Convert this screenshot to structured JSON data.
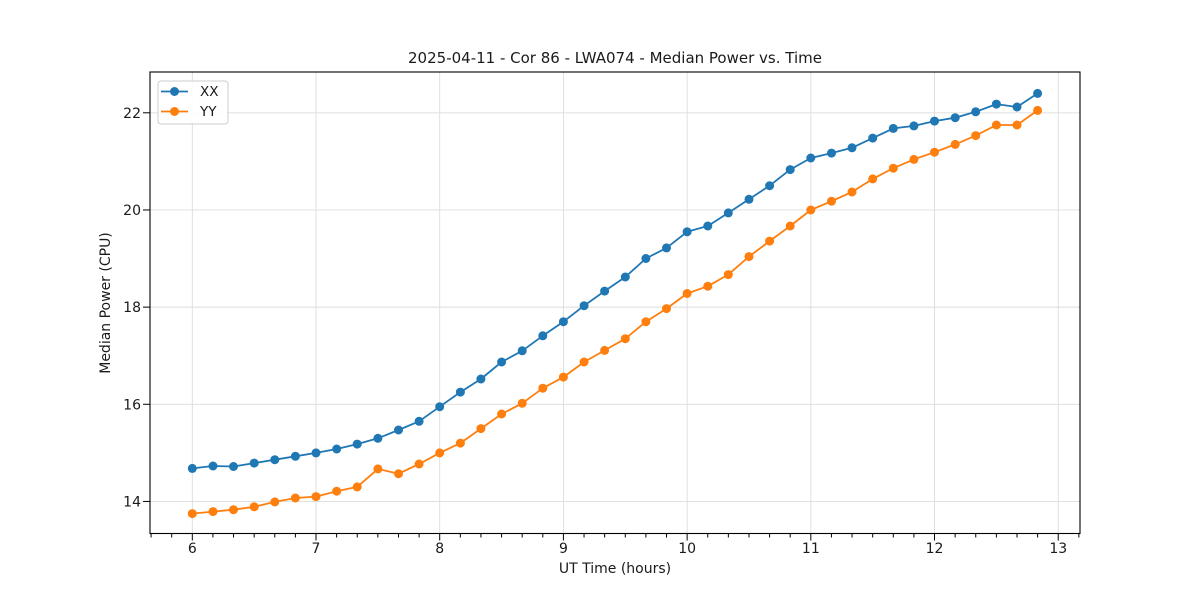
{
  "chart_data": {
    "type": "line",
    "title": "2025-04-11 - Cor 86 - LWA074 - Median Power vs. Time",
    "xlabel": "UT Time (hours)",
    "ylabel": "Median Power (CPU)",
    "xlim": [
      5.658,
      13.176
    ],
    "ylim": [
      13.34,
      22.84
    ],
    "xticks": [
      6,
      7,
      8,
      9,
      10,
      11,
      12,
      13
    ],
    "xtick_labels": [
      "6",
      "7",
      "8",
      "9",
      "10",
      "11",
      "12",
      "13"
    ],
    "yticks": [
      14,
      16,
      18,
      20,
      22
    ],
    "ytick_labels": [
      "14",
      "16",
      "18",
      "20",
      "22"
    ],
    "x_minor_per_major": 6,
    "grid": true,
    "legend_position": "upper left",
    "marker": "circle",
    "x": [
      6.0,
      6.167,
      6.333,
      6.5,
      6.667,
      6.833,
      7.0,
      7.167,
      7.333,
      7.5,
      7.667,
      7.833,
      8.0,
      8.167,
      8.333,
      8.5,
      8.667,
      8.833,
      9.0,
      9.167,
      9.333,
      9.5,
      9.667,
      9.833,
      10.0,
      10.167,
      10.333,
      10.5,
      10.667,
      10.833,
      11.0,
      11.167,
      11.333,
      11.5,
      11.667,
      11.833,
      12.0,
      12.167,
      12.333,
      12.5,
      12.667,
      12.833
    ],
    "series": [
      {
        "name": "XX",
        "color": "#1f77b4",
        "values": [
          14.68,
          14.73,
          14.72,
          14.79,
          14.86,
          14.93,
          15.0,
          15.08,
          15.18,
          15.3,
          15.47,
          15.65,
          15.95,
          16.25,
          16.52,
          16.87,
          17.1,
          17.41,
          17.7,
          18.03,
          18.33,
          18.62,
          19.0,
          19.22,
          19.55,
          19.67,
          19.94,
          20.22,
          20.5,
          20.83,
          21.07,
          21.17,
          21.28,
          21.48,
          21.68,
          21.73,
          21.83,
          21.9,
          22.02,
          22.18,
          22.12,
          22.4
        ]
      },
      {
        "name": "YY",
        "color": "#ff7f0e",
        "values": [
          13.75,
          13.79,
          13.83,
          13.89,
          13.99,
          14.07,
          14.1,
          14.21,
          14.3,
          14.67,
          14.57,
          14.77,
          15.0,
          15.2,
          15.5,
          15.8,
          16.02,
          16.33,
          16.56,
          16.87,
          17.11,
          17.35,
          17.7,
          17.97,
          18.28,
          18.43,
          18.67,
          19.04,
          19.36,
          19.67,
          20.0,
          20.18,
          20.37,
          20.64,
          20.86,
          21.04,
          21.19,
          21.35,
          21.53,
          21.75,
          21.75,
          22.05
        ]
      }
    ]
  }
}
